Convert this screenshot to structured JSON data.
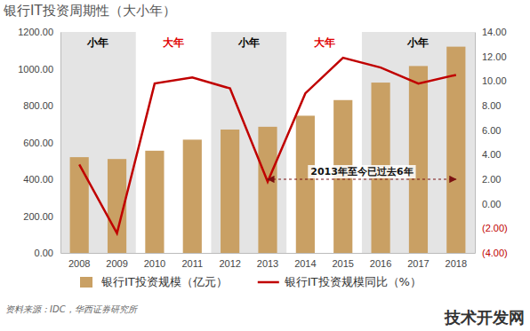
{
  "chart_data": {
    "type": "bar",
    "title": "银行IT投资周期性（大小年）",
    "categories": [
      "2008",
      "2009",
      "2010",
      "2011",
      "2012",
      "2013",
      "2014",
      "2015",
      "2016",
      "2017",
      "2018"
    ],
    "series": [
      {
        "name": "银行IT投资规模（亿元）",
        "type": "bar",
        "color": "#c9a064",
        "values": [
          520,
          510,
          555,
          615,
          670,
          685,
          745,
          830,
          925,
          1015,
          1120
        ]
      },
      {
        "name": "银行IT投资规模同比（%）",
        "type": "line",
        "color": "#c00000",
        "axis": "y2",
        "values": [
          3.2,
          -2.4,
          9.8,
          10.3,
          9.4,
          1.8,
          9.0,
          11.9,
          11.1,
          9.8,
          10.5
        ]
      }
    ],
    "ylim": [
      0,
      1200
    ],
    "yticks": [
      {
        "value": 0,
        "label": "0.00"
      },
      {
        "value": 200,
        "label": "200.00"
      },
      {
        "value": 400,
        "label": "400.00"
      },
      {
        "value": 600,
        "label": "600.00"
      },
      {
        "value": 800,
        "label": "800.00"
      },
      {
        "value": 1000,
        "label": "1000.00"
      },
      {
        "value": 1200,
        "label": "1200.00"
      }
    ],
    "y2lim": [
      -4,
      14
    ],
    "y2ticks": [
      {
        "value": -4,
        "label": "(4.00)"
      },
      {
        "value": -2,
        "label": "(2.00)"
      },
      {
        "value": 0,
        "label": "0.00"
      },
      {
        "value": 2,
        "label": "2.00"
      },
      {
        "value": 4,
        "label": "4.00"
      },
      {
        "value": 6,
        "label": "6.00"
      },
      {
        "value": 8,
        "label": "8.00"
      },
      {
        "value": 10,
        "label": "10.00"
      },
      {
        "value": 12,
        "label": "12.00"
      },
      {
        "value": 14,
        "label": "14.00"
      }
    ],
    "grid": false,
    "legend": "bottom",
    "periods": [
      {
        "label": "小年",
        "start": "2008",
        "end": "2009",
        "color": "#000000",
        "shaded": true
      },
      {
        "label": "大年",
        "start": "2010",
        "end": "2011",
        "color": "#e00000",
        "shaded": false
      },
      {
        "label": "小年",
        "start": "2012",
        "end": "2013",
        "color": "#000000",
        "shaded": true
      },
      {
        "label": "大年",
        "start": "2014",
        "end": "2015",
        "color": "#e00000",
        "shaded": false
      },
      {
        "label": "小年",
        "start": "2016",
        "end": "2018",
        "color": "#000000",
        "shaded": true
      }
    ],
    "annotations": [
      {
        "text": "2013年至今已过去6年",
        "from": "2013",
        "to": "2018",
        "y": 2,
        "axis": "y2"
      }
    ],
    "source": "资料来源：IDC，华西证券研究所",
    "watermark": "技术开发网"
  }
}
